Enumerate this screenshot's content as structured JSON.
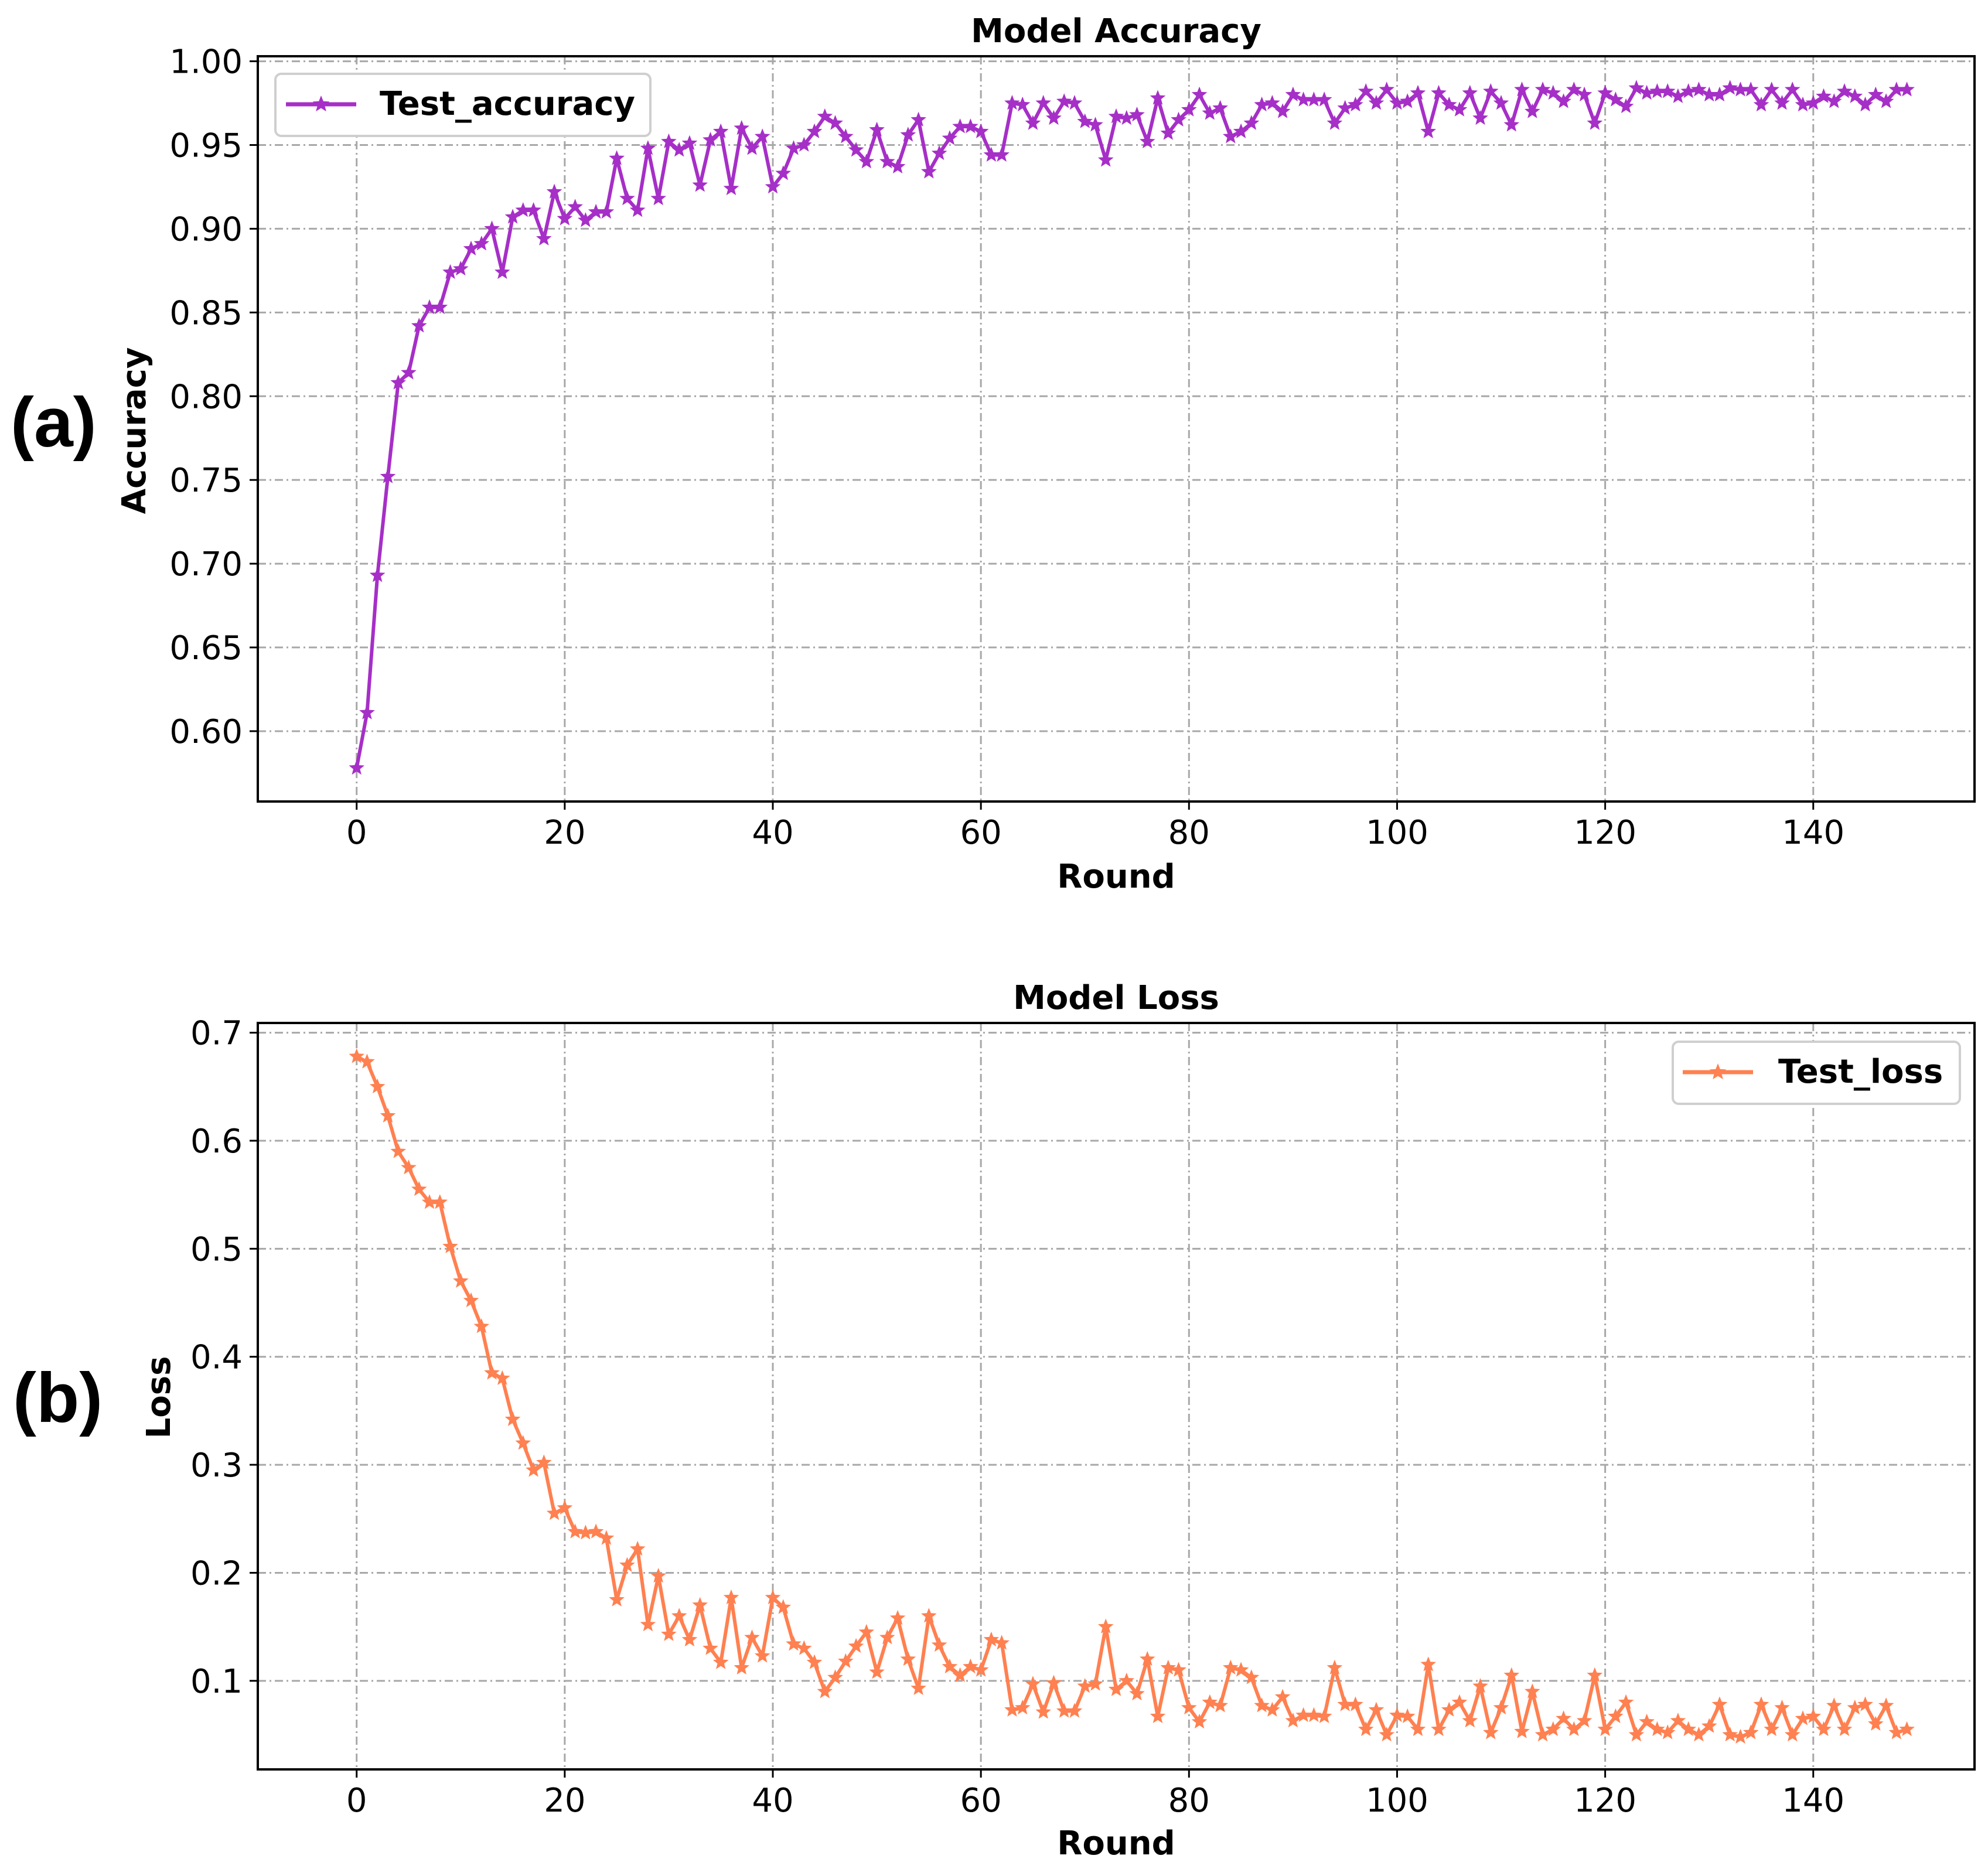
{
  "panels": [
    {
      "letter": "(a)"
    },
    {
      "letter": "(b)"
    }
  ],
  "chart_data": [
    {
      "type": "line",
      "title": "Model Accuracy",
      "xlabel": "Round",
      "ylabel": "Accuracy",
      "xlim": [
        -9.5,
        155.5
      ],
      "ylim": [
        0.558,
        1.003
      ],
      "xticks": [
        0,
        20,
        40,
        60,
        80,
        100,
        120,
        140
      ],
      "yticks": [
        0.6,
        0.65,
        0.7,
        0.75,
        0.8,
        0.85,
        0.9,
        0.95,
        1.0
      ],
      "ytick_labels": [
        "0.60",
        "0.65",
        "0.70",
        "0.75",
        "0.80",
        "0.85",
        "0.90",
        "0.95",
        "1.00"
      ],
      "grid": true,
      "legend_position": "upper-left",
      "series": [
        {
          "name": "Test_accuracy",
          "color": "#a62fc7",
          "marker": "star",
          "x": [
            0,
            1,
            2,
            3,
            4,
            5,
            6,
            7,
            8,
            9,
            10,
            11,
            12,
            13,
            14,
            15,
            16,
            17,
            18,
            19,
            20,
            21,
            22,
            23,
            24,
            25,
            26,
            27,
            28,
            29,
            30,
            31,
            32,
            33,
            34,
            35,
            36,
            37,
            38,
            39,
            40,
            41,
            42,
            43,
            44,
            45,
            46,
            47,
            48,
            49,
            50,
            51,
            52,
            53,
            54,
            55,
            56,
            57,
            58,
            59,
            60,
            61,
            62,
            63,
            64,
            65,
            66,
            67,
            68,
            69,
            70,
            71,
            72,
            73,
            74,
            75,
            76,
            77,
            78,
            79,
            80,
            81,
            82,
            83,
            84,
            85,
            86,
            87,
            88,
            89,
            90,
            91,
            92,
            93,
            94,
            95,
            96,
            97,
            98,
            99,
            100,
            101,
            102,
            103,
            104,
            105,
            106,
            107,
            108,
            109,
            110,
            111,
            112,
            113,
            114,
            115,
            116,
            117,
            118,
            119,
            120,
            121,
            122,
            123,
            124,
            125,
            126,
            127,
            128,
            129,
            130,
            131,
            132,
            133,
            134,
            135,
            136,
            137,
            138,
            139,
            140,
            141,
            142,
            143,
            144,
            145,
            146,
            147,
            148,
            149
          ],
          "values": [
            0.578,
            0.611,
            0.693,
            0.752,
            0.808,
            0.814,
            0.842,
            0.853,
            0.853,
            0.874,
            0.876,
            0.888,
            0.891,
            0.9,
            0.874,
            0.907,
            0.911,
            0.911,
            0.894,
            0.922,
            0.906,
            0.913,
            0.905,
            0.91,
            0.91,
            0.942,
            0.918,
            0.911,
            0.948,
            0.918,
            0.952,
            0.947,
            0.951,
            0.926,
            0.953,
            0.958,
            0.924,
            0.96,
            0.948,
            0.955,
            0.925,
            0.933,
            0.948,
            0.95,
            0.958,
            0.967,
            0.963,
            0.955,
            0.947,
            0.94,
            0.959,
            0.94,
            0.937,
            0.956,
            0.965,
            0.934,
            0.945,
            0.954,
            0.961,
            0.961,
            0.958,
            0.944,
            0.944,
            0.975,
            0.974,
            0.963,
            0.975,
            0.966,
            0.976,
            0.975,
            0.964,
            0.962,
            0.941,
            0.967,
            0.966,
            0.968,
            0.952,
            0.978,
            0.957,
            0.965,
            0.971,
            0.98,
            0.969,
            0.972,
            0.955,
            0.958,
            0.963,
            0.974,
            0.975,
            0.97,
            0.98,
            0.977,
            0.977,
            0.977,
            0.963,
            0.972,
            0.974,
            0.982,
            0.975,
            0.983,
            0.975,
            0.976,
            0.981,
            0.958,
            0.981,
            0.974,
            0.971,
            0.981,
            0.966,
            0.982,
            0.975,
            0.962,
            0.983,
            0.97,
            0.983,
            0.981,
            0.976,
            0.983,
            0.98,
            0.963,
            0.981,
            0.977,
            0.973,
            0.984,
            0.981,
            0.982,
            0.982,
            0.979,
            0.982,
            0.983,
            0.98,
            0.98,
            0.984,
            0.983,
            0.983,
            0.974,
            0.983,
            0.975,
            0.983,
            0.974,
            0.975,
            0.979,
            0.976,
            0.982,
            0.979,
            0.974,
            0.98,
            0.976,
            0.983,
            0.983
          ]
        }
      ]
    },
    {
      "type": "line",
      "title": "Model Loss",
      "xlabel": "Round",
      "ylabel": "Loss",
      "xlim": [
        -9.5,
        155.5
      ],
      "ylim": [
        0.018,
        0.709
      ],
      "xticks": [
        0,
        20,
        40,
        60,
        80,
        100,
        120,
        140
      ],
      "yticks": [
        0.1,
        0.2,
        0.3,
        0.4,
        0.5,
        0.6,
        0.7
      ],
      "ytick_labels": [
        "0.1",
        "0.2",
        "0.3",
        "0.4",
        "0.5",
        "0.6",
        "0.7"
      ],
      "grid": true,
      "legend_position": "upper-right",
      "series": [
        {
          "name": "Test_loss",
          "color": "#ff8050",
          "marker": "star",
          "x": [
            0,
            1,
            2,
            3,
            4,
            5,
            6,
            7,
            8,
            9,
            10,
            11,
            12,
            13,
            14,
            15,
            16,
            17,
            18,
            19,
            20,
            21,
            22,
            23,
            24,
            25,
            26,
            27,
            28,
            29,
            30,
            31,
            32,
            33,
            34,
            35,
            36,
            37,
            38,
            39,
            40,
            41,
            42,
            43,
            44,
            45,
            46,
            47,
            48,
            49,
            50,
            51,
            52,
            53,
            54,
            55,
            56,
            57,
            58,
            59,
            60,
            61,
            62,
            63,
            64,
            65,
            66,
            67,
            68,
            69,
            70,
            71,
            72,
            73,
            74,
            75,
            76,
            77,
            78,
            79,
            80,
            81,
            82,
            83,
            84,
            85,
            86,
            87,
            88,
            89,
            90,
            91,
            92,
            93,
            94,
            95,
            96,
            97,
            98,
            99,
            100,
            101,
            102,
            103,
            104,
            105,
            106,
            107,
            108,
            109,
            110,
            111,
            112,
            113,
            114,
            115,
            116,
            117,
            118,
            119,
            120,
            121,
            122,
            123,
            124,
            125,
            126,
            127,
            128,
            129,
            130,
            131,
            132,
            133,
            134,
            135,
            136,
            137,
            138,
            139,
            140,
            141,
            142,
            143,
            144,
            145,
            146,
            147,
            148,
            149
          ],
          "values": [
            0.678,
            0.673,
            0.65,
            0.623,
            0.59,
            0.575,
            0.555,
            0.543,
            0.543,
            0.502,
            0.47,
            0.452,
            0.428,
            0.385,
            0.38,
            0.342,
            0.32,
            0.295,
            0.302,
            0.255,
            0.26,
            0.238,
            0.237,
            0.238,
            0.232,
            0.175,
            0.207,
            0.222,
            0.152,
            0.197,
            0.143,
            0.16,
            0.138,
            0.17,
            0.13,
            0.117,
            0.177,
            0.112,
            0.14,
            0.123,
            0.177,
            0.168,
            0.134,
            0.13,
            0.117,
            0.09,
            0.103,
            0.118,
            0.132,
            0.145,
            0.108,
            0.14,
            0.158,
            0.12,
            0.093,
            0.16,
            0.133,
            0.113,
            0.105,
            0.113,
            0.11,
            0.138,
            0.135,
            0.073,
            0.075,
            0.097,
            0.071,
            0.098,
            0.072,
            0.072,
            0.095,
            0.097,
            0.15,
            0.092,
            0.1,
            0.088,
            0.12,
            0.067,
            0.112,
            0.11,
            0.075,
            0.062,
            0.08,
            0.077,
            0.112,
            0.11,
            0.103,
            0.077,
            0.073,
            0.085,
            0.063,
            0.068,
            0.068,
            0.067,
            0.112,
            0.078,
            0.078,
            0.055,
            0.073,
            0.05,
            0.068,
            0.067,
            0.055,
            0.115,
            0.055,
            0.073,
            0.08,
            0.063,
            0.095,
            0.052,
            0.075,
            0.105,
            0.053,
            0.09,
            0.05,
            0.055,
            0.065,
            0.055,
            0.063,
            0.105,
            0.055,
            0.067,
            0.08,
            0.05,
            0.062,
            0.055,
            0.052,
            0.063,
            0.055,
            0.05,
            0.058,
            0.078,
            0.05,
            0.048,
            0.052,
            0.078,
            0.055,
            0.075,
            0.05,
            0.065,
            0.067,
            0.055,
            0.077,
            0.055,
            0.075,
            0.078,
            0.06,
            0.077,
            0.052,
            0.055
          ]
        }
      ]
    }
  ]
}
